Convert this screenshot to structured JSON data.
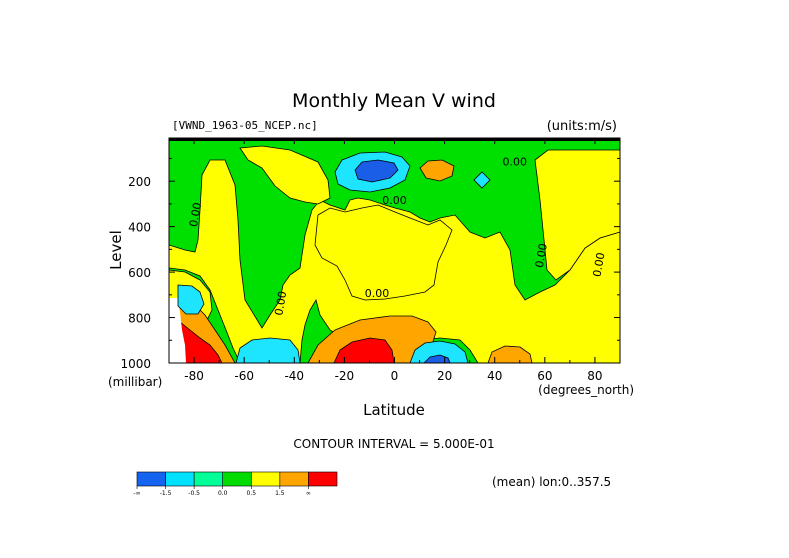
{
  "chart_data": {
    "type": "heatmap",
    "title": "Monthly Mean V wind",
    "file_label": "[VWND_1963-05_NCEP.nc]",
    "units_label": "(units:m/s)",
    "xlabel": "Latitude",
    "x_units": "(degrees_north)",
    "ylabel": "Level",
    "y_units": "(millibar)",
    "xlim": [
      -90,
      90
    ],
    "ylim": [
      1000,
      10
    ],
    "x_ticks": [
      {
        "value": -80,
        "label": "-80"
      },
      {
        "value": -60,
        "label": "-60"
      },
      {
        "value": -40,
        "label": "-40"
      },
      {
        "value": -20,
        "label": "-20"
      },
      {
        "value": 0,
        "label": "0"
      },
      {
        "value": 20,
        "label": "20"
      },
      {
        "value": 40,
        "label": "40"
      },
      {
        "value": 60,
        "label": "60"
      },
      {
        "value": 80,
        "label": "80"
      }
    ],
    "y_ticks": [
      {
        "value": 200,
        "label": "200"
      },
      {
        "value": 400,
        "label": "400"
      },
      {
        "value": 600,
        "label": "600"
      },
      {
        "value": 800,
        "label": "800"
      },
      {
        "value": 1000,
        "label": "1000"
      }
    ],
    "contour_interval_label": "CONTOUR INTERVAL = 5.000E-01",
    "mean_label": "(mean) lon:0..357.5",
    "contour_labels": [
      {
        "text": "0.00",
        "lat": -78,
        "level": 350
      },
      {
        "text": "0.00",
        "lat": 0,
        "level": 300
      },
      {
        "text": "0.00",
        "lat": 48,
        "level": 130
      },
      {
        "text": "0.00",
        "lat": 60,
        "level": 530
      },
      {
        "text": "0.00",
        "lat": 83,
        "level": 570
      },
      {
        "text": "0.00",
        "lat": -44,
        "level": 740
      },
      {
        "text": "0.00",
        "lat": -7,
        "level": 710
      }
    ],
    "colorbar": {
      "colors": [
        "#1464f0",
        "#00e1ff",
        "#00ff96",
        "#00dc00",
        "#ffff00",
        "#ffa500",
        "#ff0000"
      ],
      "labels": [
        "-∞",
        "-1.5",
        "-0.5",
        "0.0",
        "0.5",
        "1.5",
        "∞"
      ]
    },
    "palette": {
      "strong_neg": "#1a5ee8",
      "neg": "#1ee5ff",
      "weak_neg": "#00e000",
      "weak_pos": "#ffff00",
      "pos": "#ffa500",
      "strong_pos": "#ff0000",
      "missing": "#ffffff"
    }
  }
}
